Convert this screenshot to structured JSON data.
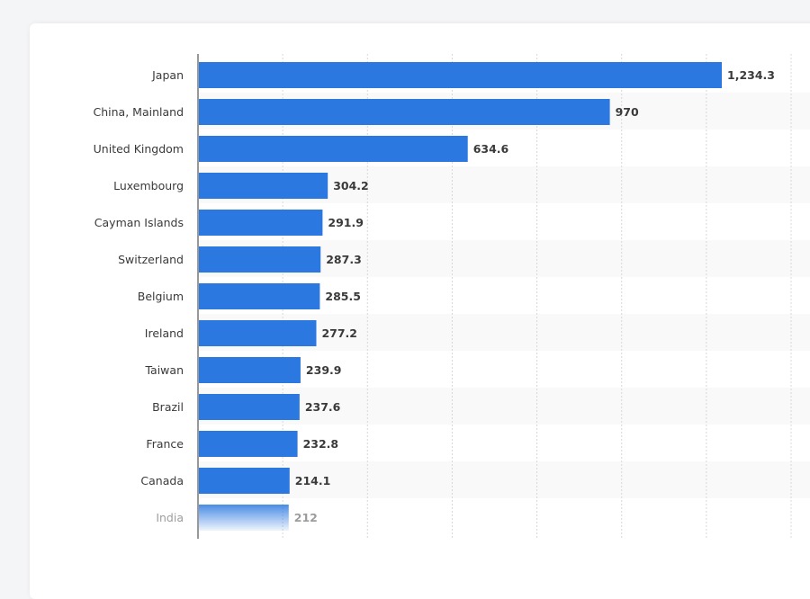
{
  "chart_data": {
    "type": "bar",
    "orientation": "horizontal",
    "categories": [
      "Japan",
      "China, Mainland",
      "United Kingdom",
      "Luxembourg",
      "Cayman Islands",
      "Switzerland",
      "Belgium",
      "Ireland",
      "Taiwan",
      "Brazil",
      "France",
      "Canada",
      "India"
    ],
    "values": [
      1234.3,
      970,
      634.6,
      304.2,
      291.9,
      287.3,
      285.5,
      277.2,
      239.9,
      237.6,
      232.8,
      214.1,
      212
    ],
    "value_labels": [
      "1,234.3",
      "970",
      "634.6",
      "304.2",
      "291.9",
      "287.3",
      "285.5",
      "277.2",
      "239.9",
      "237.6",
      "232.8",
      "214.1",
      "212"
    ],
    "xlim": [
      0,
      1400
    ],
    "grid": true,
    "legend": "none",
    "bar_color": "#2a78e0",
    "faded_last_bar": true
  }
}
